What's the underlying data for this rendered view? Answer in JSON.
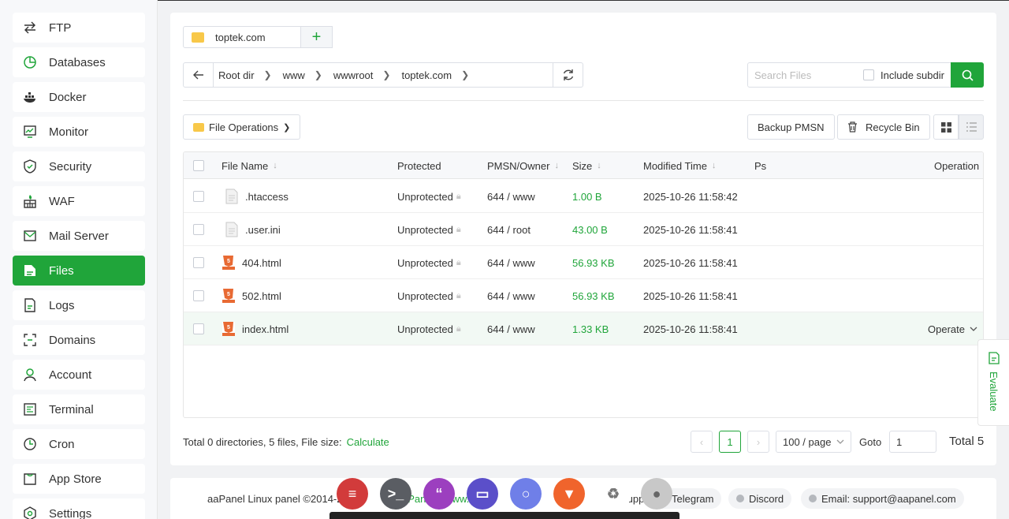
{
  "sidebar": {
    "items": [
      {
        "label": "FTP",
        "icon": "transfer-icon",
        "active": false
      },
      {
        "label": "Databases",
        "icon": "database-icon",
        "active": false
      },
      {
        "label": "Docker",
        "icon": "docker-icon",
        "active": false
      },
      {
        "label": "Monitor",
        "icon": "monitor-icon",
        "active": false
      },
      {
        "label": "Security",
        "icon": "shield-icon",
        "active": false
      },
      {
        "label": "WAF",
        "icon": "firewall-icon",
        "active": false
      },
      {
        "label": "Mail Server",
        "icon": "mail-icon",
        "active": false
      },
      {
        "label": "Files",
        "icon": "file-icon",
        "active": true
      },
      {
        "label": "Logs",
        "icon": "log-icon",
        "active": false
      },
      {
        "label": "Domains",
        "icon": "domain-icon",
        "active": false
      },
      {
        "label": "Account",
        "icon": "user-icon",
        "active": false
      },
      {
        "label": "Terminal",
        "icon": "terminal-icon",
        "active": false
      },
      {
        "label": "Cron",
        "icon": "clock-icon",
        "active": false
      },
      {
        "label": "App Store",
        "icon": "store-icon",
        "active": false
      },
      {
        "label": "Settings",
        "icon": "gear-icon",
        "active": false
      }
    ]
  },
  "tab": {
    "label": "toptek.com",
    "add": "+"
  },
  "path": {
    "crumbs": [
      "Root dir",
      "www",
      "wwwroot",
      "toptek.com"
    ]
  },
  "search": {
    "placeholder": "Search Files",
    "include_subdir": "Include subdir"
  },
  "toolbar": {
    "file_operations": "File Operations",
    "backup": "Backup PMSN",
    "recycle": "Recycle Bin"
  },
  "table": {
    "headers": {
      "name": "File Name",
      "protected": "Protected",
      "perm": "PMSN/Owner",
      "size": "Size",
      "modified": "Modified Time",
      "ps": "Ps",
      "operation": "Operation"
    },
    "rows": [
      {
        "name": ".htaccess",
        "type": "text",
        "protected": "Unprotected",
        "perm": "644 / www",
        "size": "1.00 B",
        "modified": "2025-10-26 11:58:42",
        "op": ""
      },
      {
        "name": ".user.ini",
        "type": "text",
        "protected": "Unprotected",
        "perm": "644 / root",
        "size": "43.00 B",
        "modified": "2025-10-26 11:58:41",
        "op": ""
      },
      {
        "name": "404.html",
        "type": "html",
        "protected": "Unprotected",
        "perm": "644 / www",
        "size": "56.93 KB",
        "modified": "2025-10-26 11:58:41",
        "op": ""
      },
      {
        "name": "502.html",
        "type": "html",
        "protected": "Unprotected",
        "perm": "644 / www",
        "size": "56.93 KB",
        "modified": "2025-10-26 11:58:41",
        "op": ""
      },
      {
        "name": "index.html",
        "type": "html",
        "protected": "Unprotected",
        "perm": "644 / www",
        "size": "1.33 KB",
        "modified": "2025-10-26 11:58:41",
        "op": "Operate"
      }
    ]
  },
  "footer": {
    "stats": "Total 0 directories, 5 files, File size:",
    "calculate": "Calculate",
    "current_page": "1",
    "page_size": "100 / page",
    "goto_label": "Goto",
    "goto_value": "1",
    "total": "Total 5"
  },
  "evaluate": {
    "label": "Evaluate"
  },
  "bottom": {
    "copyright": "aaPanel Linux panel ©2014-2",
    "partial": "aPanel.c    www.a",
    "support": "Support:",
    "telegram": "Telegram",
    "discord": "Discord",
    "email": "Email: support@aapanel.com"
  },
  "dock": {
    "apps": [
      {
        "name": "app-red-icon",
        "color": "#d23b3b"
      },
      {
        "name": "terminal-app-icon",
        "color": "#5a5d63"
      },
      {
        "name": "quote-app-icon",
        "color": "#9c3fbf"
      },
      {
        "name": "files-app-icon",
        "color": "#5b4fc9"
      },
      {
        "name": "browser-app-icon",
        "color": "#6f7fe8"
      },
      {
        "name": "brave-icon",
        "color": "#f0642c"
      },
      {
        "name": "recycle-app-icon",
        "color": "#ffffff"
      },
      {
        "name": "toggle-app-icon",
        "color": "#c0c0c0"
      }
    ]
  }
}
